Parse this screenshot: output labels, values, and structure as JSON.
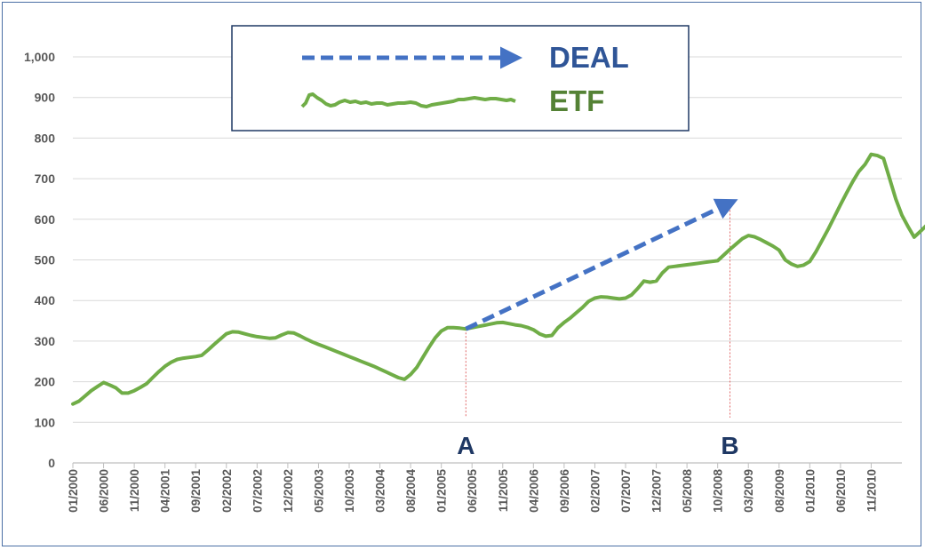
{
  "chart_data": {
    "type": "line",
    "y_ticks": [
      "0",
      "100",
      "200",
      "300",
      "400",
      "500",
      "600",
      "700",
      "800",
      "900",
      "1,000"
    ],
    "ylim": [
      0,
      1000
    ],
    "x_ticks": [
      "01/2000",
      "06/2000",
      "11/2000",
      "04/2001",
      "09/2001",
      "02/2002",
      "07/2002",
      "12/2002",
      "05/2003",
      "10/2003",
      "03/2004",
      "08/2004",
      "01/2005",
      "06/2005",
      "11/2005",
      "04/2006",
      "09/2006",
      "02/2007",
      "07/2007",
      "12/2007",
      "05/2008",
      "10/2008",
      "03/2009",
      "08/2009",
      "01/2010",
      "06/2010",
      "11/2010"
    ],
    "xlim": [
      "01/2000",
      "04/2011"
    ],
    "grid": true,
    "legend": {
      "placement": "top-center",
      "entries": [
        {
          "label": "DEAL",
          "color": "#4472c4",
          "style": "dashed-arrow"
        },
        {
          "label": "ETF",
          "color": "#70ad47",
          "style": "line"
        }
      ]
    },
    "series": [
      {
        "name": "ETF",
        "color": "#70ad47",
        "points": [
          [
            "01/2000",
            145
          ],
          [
            "02/2000",
            152
          ],
          [
            "03/2000",
            165
          ],
          [
            "04/2000",
            178
          ],
          [
            "05/2000",
            188
          ],
          [
            "06/2000",
            198
          ],
          [
            "07/2000",
            192
          ],
          [
            "08/2000",
            185
          ],
          [
            "09/2000",
            172
          ],
          [
            "10/2000",
            172
          ],
          [
            "11/2000",
            178
          ],
          [
            "12/2000",
            186
          ],
          [
            "01/2001",
            195
          ],
          [
            "02/2001",
            210
          ],
          [
            "03/2001",
            225
          ],
          [
            "04/2001",
            238
          ],
          [
            "05/2001",
            248
          ],
          [
            "06/2001",
            255
          ],
          [
            "07/2001",
            258
          ],
          [
            "08/2001",
            260
          ],
          [
            "09/2001",
            262
          ],
          [
            "10/2001",
            265
          ],
          [
            "11/2001",
            278
          ],
          [
            "12/2001",
            292
          ],
          [
            "01/2002",
            305
          ],
          [
            "02/2002",
            318
          ],
          [
            "03/2002",
            323
          ],
          [
            "04/2002",
            322
          ],
          [
            "05/2002",
            318
          ],
          [
            "06/2002",
            314
          ],
          [
            "07/2002",
            311
          ],
          [
            "08/2002",
            309
          ],
          [
            "09/2002",
            307
          ],
          [
            "10/2002",
            308
          ],
          [
            "11/2002",
            315
          ],
          [
            "12/2002",
            321
          ],
          [
            "01/2003",
            320
          ],
          [
            "02/2003",
            313
          ],
          [
            "03/2003",
            305
          ],
          [
            "04/2003",
            298
          ],
          [
            "05/2003",
            292
          ],
          [
            "06/2003",
            286
          ],
          [
            "07/2003",
            280
          ],
          [
            "08/2003",
            274
          ],
          [
            "09/2003",
            268
          ],
          [
            "10/2003",
            262
          ],
          [
            "11/2003",
            256
          ],
          [
            "12/2003",
            250
          ],
          [
            "01/2004",
            244
          ],
          [
            "02/2004",
            238
          ],
          [
            "03/2004",
            231
          ],
          [
            "04/2004",
            224
          ],
          [
            "05/2004",
            217
          ],
          [
            "06/2004",
            210
          ],
          [
            "07/2004",
            206
          ],
          [
            "08/2004",
            218
          ],
          [
            "09/2004",
            235
          ],
          [
            "10/2004",
            260
          ],
          [
            "11/2004",
            285
          ],
          [
            "12/2004",
            308
          ],
          [
            "01/2005",
            325
          ],
          [
            "02/2005",
            333
          ],
          [
            "03/2005",
            333
          ],
          [
            "04/2005",
            332
          ],
          [
            "05/2005",
            330
          ],
          [
            "06/2005",
            333
          ],
          [
            "07/2005",
            336
          ],
          [
            "08/2005",
            339
          ],
          [
            "09/2005",
            342
          ],
          [
            "10/2005",
            345
          ],
          [
            "11/2005",
            346
          ],
          [
            "12/2005",
            343
          ],
          [
            "01/2006",
            340
          ],
          [
            "02/2006",
            338
          ],
          [
            "03/2006",
            334
          ],
          [
            "04/2006",
            328
          ],
          [
            "05/2006",
            318
          ],
          [
            "06/2006",
            312
          ],
          [
            "07/2006",
            314
          ],
          [
            "08/2006",
            333
          ],
          [
            "09/2006",
            346
          ],
          [
            "10/2006",
            357
          ],
          [
            "11/2006",
            370
          ],
          [
            "12/2006",
            383
          ],
          [
            "01/2007",
            398
          ],
          [
            "02/2007",
            406
          ],
          [
            "03/2007",
            409
          ],
          [
            "04/2007",
            408
          ],
          [
            "05/2007",
            406
          ],
          [
            "06/2007",
            404
          ],
          [
            "07/2007",
            406
          ],
          [
            "08/2007",
            414
          ],
          [
            "09/2007",
            430
          ],
          [
            "10/2007",
            448
          ],
          [
            "11/2007",
            445
          ],
          [
            "12/2007",
            448
          ],
          [
            "01/2008",
            468
          ],
          [
            "02/2008",
            482
          ],
          [
            "03/2008",
            484
          ],
          [
            "04/2008",
            486
          ],
          [
            "05/2008",
            488
          ],
          [
            "06/2008",
            490
          ],
          [
            "07/2008",
            492
          ],
          [
            "08/2008",
            494
          ],
          [
            "09/2008",
            496
          ],
          [
            "10/2008",
            498
          ],
          [
            "11/2008",
            512
          ],
          [
            "12/2008",
            526
          ],
          [
            "01/2009",
            539
          ],
          [
            "02/2009",
            552
          ],
          [
            "03/2009",
            560
          ],
          [
            "04/2009",
            557
          ],
          [
            "05/2009",
            550
          ],
          [
            "06/2009",
            542
          ],
          [
            "07/2009",
            534
          ],
          [
            "08/2009",
            524
          ],
          [
            "09/2009",
            500
          ],
          [
            "10/2009",
            490
          ],
          [
            "11/2009",
            484
          ],
          [
            "12/2009",
            487
          ],
          [
            "01/2010",
            496
          ],
          [
            "02/2010",
            520
          ],
          [
            "03/2010",
            548
          ],
          [
            "04/2010",
            576
          ],
          [
            "05/2010",
            606
          ],
          [
            "06/2010",
            636
          ],
          [
            "07/2010",
            665
          ],
          [
            "08/2010",
            693
          ],
          [
            "09/2010",
            718
          ],
          [
            "10/2010",
            735
          ],
          [
            "11/2010",
            760
          ],
          [
            "12/2010",
            757
          ],
          [
            "01/2011",
            750
          ],
          [
            "02/2011",
            700
          ],
          [
            "03/2011",
            650
          ],
          [
            "04/2011",
            610
          ],
          [
            "05/2011",
            582
          ],
          [
            "06/2011",
            556
          ],
          [
            "07/2011",
            570
          ],
          [
            "08/2011",
            585
          ]
        ]
      }
    ],
    "annotations": [
      {
        "label": "A",
        "x": "05/2005"
      },
      {
        "label": "B",
        "x": "12/2008"
      }
    ],
    "deal_arrow": {
      "from": [
        "05/2005",
        330
      ],
      "to": [
        "12/2008",
        640
      ]
    }
  }
}
